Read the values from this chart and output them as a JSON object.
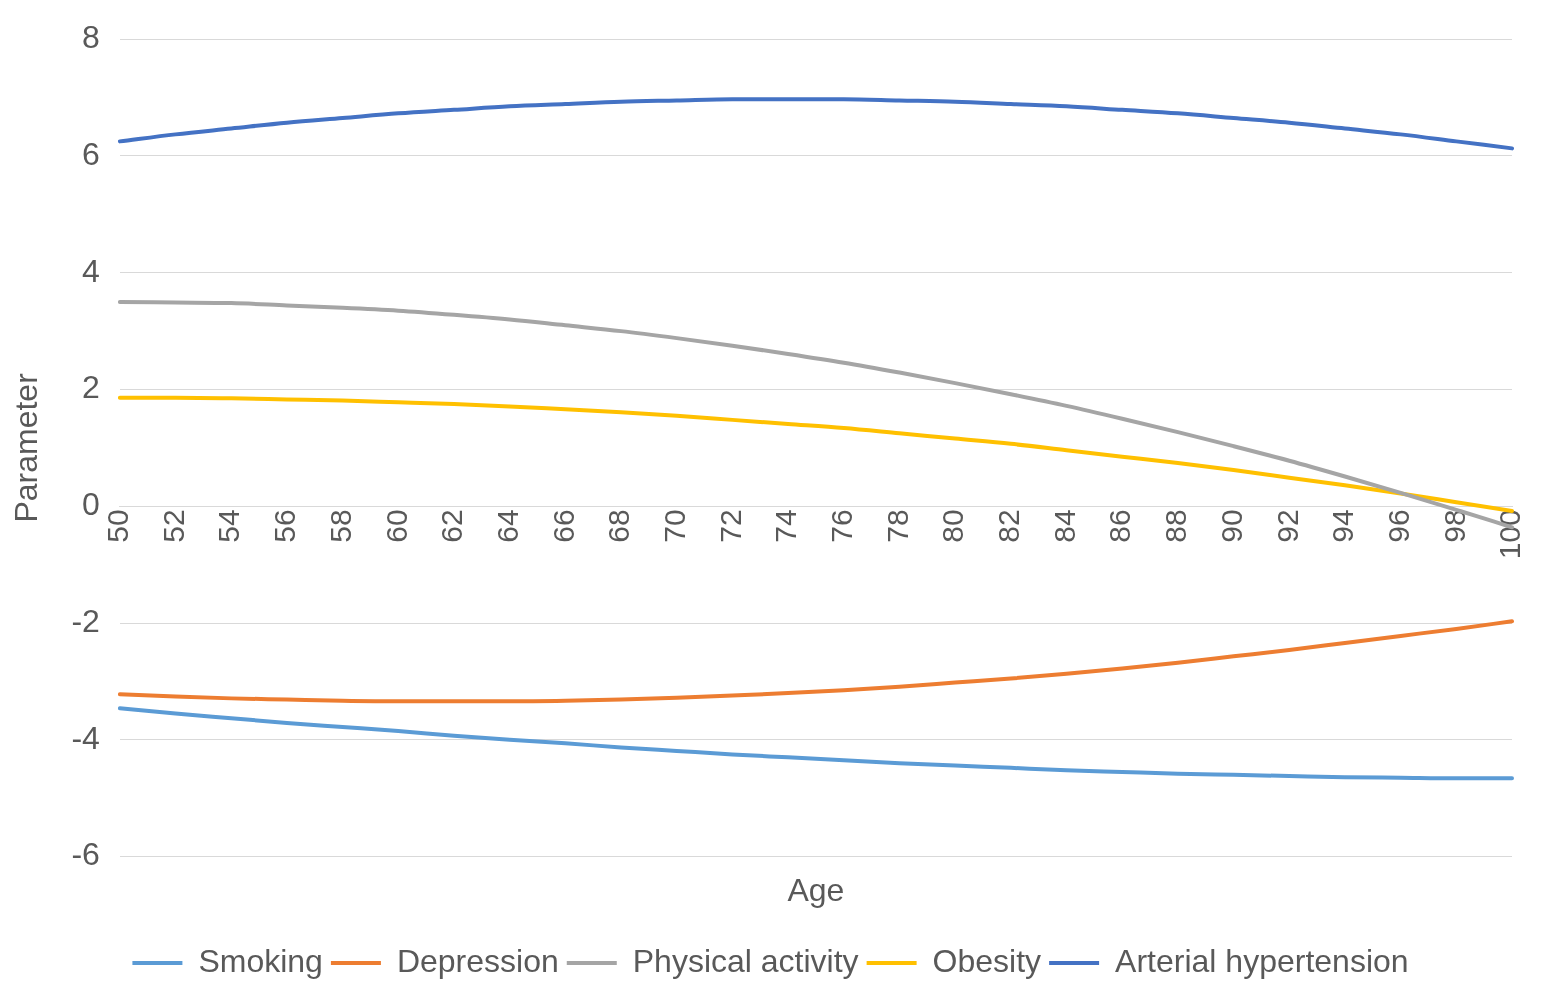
{
  "chart_data": {
    "type": "line",
    "xlabel": "Age",
    "ylabel": "Parameter",
    "categories": [
      "50",
      "52",
      "54",
      "56",
      "58",
      "60",
      "62",
      "64",
      "66",
      "68",
      "70",
      "72",
      "74",
      "76",
      "78",
      "80",
      "82",
      "84",
      "86",
      "88",
      "90",
      "92",
      "94",
      "96",
      "98",
      "100"
    ],
    "series": [
      {
        "name": "Smoking",
        "color": "#5b9bd5",
        "values": [
          -3.46,
          -3.55,
          -3.63,
          -3.71,
          -3.78,
          -3.85,
          -3.93,
          -4.0,
          -4.06,
          -4.13,
          -4.19,
          -4.25,
          -4.3,
          -4.35,
          -4.4,
          -4.44,
          -4.48,
          -4.52,
          -4.55,
          -4.58,
          -4.6,
          -4.62,
          -4.64,
          -4.65,
          -4.66,
          -4.66
        ]
      },
      {
        "name": "Depression",
        "color": "#ed7d31",
        "values": [
          -3.22,
          -3.26,
          -3.29,
          -3.31,
          -3.33,
          -3.34,
          -3.34,
          -3.34,
          -3.33,
          -3.31,
          -3.28,
          -3.24,
          -3.2,
          -3.15,
          -3.09,
          -3.02,
          -2.95,
          -2.87,
          -2.78,
          -2.68,
          -2.57,
          -2.46,
          -2.34,
          -2.22,
          -2.1,
          -1.97
        ]
      },
      {
        "name": "Physical activity",
        "color": "#a5a5a5",
        "values": [
          3.5,
          3.49,
          3.48,
          3.44,
          3.4,
          3.35,
          3.28,
          3.2,
          3.1,
          3.0,
          2.88,
          2.75,
          2.61,
          2.46,
          2.29,
          2.11,
          1.92,
          1.72,
          1.5,
          1.27,
          1.03,
          0.78,
          0.51,
          0.23,
          -0.06,
          -0.36
        ]
      },
      {
        "name": "Obesity",
        "color": "#ffc000",
        "values": [
          1.86,
          1.86,
          1.85,
          1.83,
          1.81,
          1.78,
          1.75,
          1.71,
          1.66,
          1.61,
          1.55,
          1.48,
          1.41,
          1.34,
          1.25,
          1.16,
          1.07,
          0.96,
          0.85,
          0.74,
          0.62,
          0.49,
          0.36,
          0.22,
          0.07,
          -0.08
        ]
      },
      {
        "name": "Arterial hypertension",
        "color": "#4472c4",
        "values": [
          6.25,
          6.37,
          6.47,
          6.57,
          6.65,
          6.73,
          6.79,
          6.85,
          6.89,
          6.93,
          6.95,
          6.97,
          6.97,
          6.97,
          6.95,
          6.93,
          6.89,
          6.85,
          6.79,
          6.73,
          6.65,
          6.57,
          6.47,
          6.37,
          6.25,
          6.13
        ]
      }
    ],
    "ylim": [
      -6,
      8
    ],
    "yticks": [
      -6,
      -4,
      -2,
      0,
      2,
      4,
      6,
      8
    ],
    "grid": "y",
    "legend": "bottom",
    "marker": "none",
    "line_style": "solid"
  }
}
